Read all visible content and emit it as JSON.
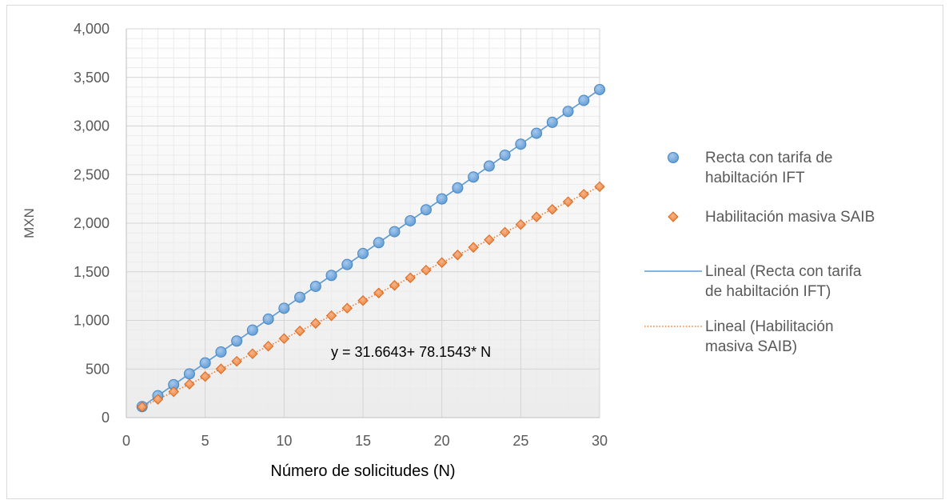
{
  "chart_data": {
    "type": "scatter",
    "title": "",
    "xlabel": "Número de solicitudes (N)",
    "ylabel": "MXN",
    "xlim": [
      0,
      30
    ],
    "ylim": [
      0,
      4000
    ],
    "x_ticks": [
      "0",
      "5",
      "10",
      "15",
      "20",
      "25",
      "30"
    ],
    "y_ticks": [
      "0",
      "500",
      "1,000",
      "1,500",
      "2,000",
      "2,500",
      "3,000",
      "3,500",
      "4,000"
    ],
    "grid": true,
    "legend_position": "right",
    "annotation": "y = 31.6643+ 78.1543* N",
    "series": [
      {
        "name": "Recta con tarifa de habiltación IFT",
        "marker": "circle",
        "color": "#5b9bd5",
        "x": [
          1,
          2,
          3,
          4,
          5,
          6,
          7,
          8,
          9,
          10,
          11,
          12,
          13,
          14,
          15,
          16,
          17,
          18,
          19,
          20,
          21,
          22,
          23,
          24,
          25,
          26,
          27,
          28,
          29,
          30
        ],
        "y": [
          113,
          225,
          338,
          450,
          563,
          675,
          788,
          900,
          1013,
          1125,
          1238,
          1350,
          1463,
          1575,
          1688,
          1800,
          1913,
          2025,
          2138,
          2250,
          2363,
          2475,
          2588,
          2700,
          2813,
          2925,
          3038,
          3150,
          3263,
          3375
        ]
      },
      {
        "name": "Habilitación masiva SAIB",
        "marker": "diamond",
        "color": "#ed7d31",
        "x": [
          1,
          2,
          3,
          4,
          5,
          6,
          7,
          8,
          9,
          10,
          11,
          12,
          13,
          14,
          15,
          16,
          17,
          18,
          19,
          20,
          21,
          22,
          23,
          24,
          25,
          26,
          27,
          28,
          29,
          30
        ],
        "y": [
          110,
          188,
          266,
          344,
          422,
          501,
          579,
          657,
          735,
          813,
          891,
          969,
          1048,
          1126,
          1204,
          1282,
          1360,
          1438,
          1517,
          1595,
          1673,
          1751,
          1829,
          1907,
          1986,
          2064,
          2142,
          2220,
          2298,
          2376
        ]
      },
      {
        "name": "Lineal (Recta con tarifa de habiltación IFT)",
        "type": "trendline",
        "style": "solid",
        "color": "#5b9bd5",
        "of_series": 0
      },
      {
        "name": "Lineal (Habilitación masiva SAIB)",
        "type": "trendline",
        "style": "dotted",
        "color": "#ed7d31",
        "of_series": 1
      }
    ],
    "legend": [
      {
        "lines": [
          "Recta con tarifa de",
          "habiltación IFT"
        ]
      },
      {
        "lines": [
          "Habilitación masiva SAIB"
        ]
      },
      {
        "lines": [
          "Lineal (Recta con tarifa",
          "de habiltación IFT)"
        ]
      },
      {
        "lines": [
          "Lineal (Habilitación",
          "masiva SAIB)"
        ]
      }
    ]
  }
}
